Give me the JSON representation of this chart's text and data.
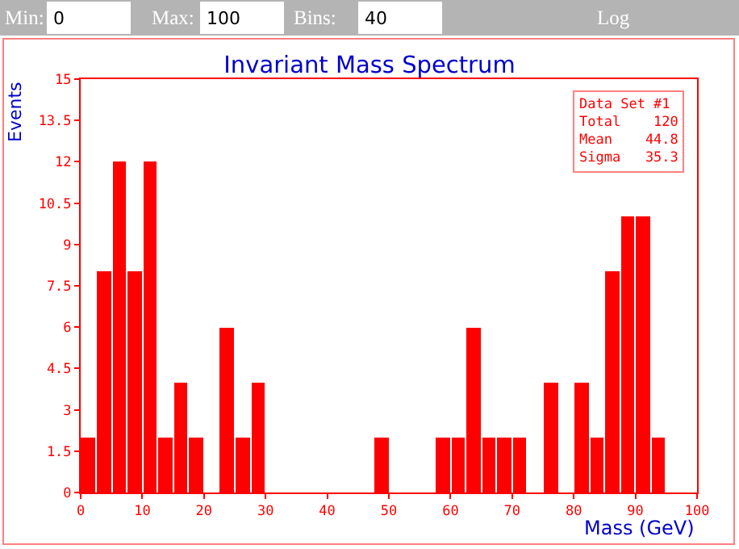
{
  "chart_data": {
    "type": "histogram",
    "title": "Invariant Mass Spectrum",
    "xlabel": "Mass (GeV)",
    "ylabel": "Events",
    "bins": [
      0,
      2.5,
      5,
      7.5,
      10,
      12.5,
      15,
      17.5,
      20,
      22.5,
      25,
      27.5,
      30,
      32.5,
      35,
      37.5,
      40,
      42.5,
      45,
      47.5,
      50,
      52.5,
      55,
      57.5,
      60,
      62.5,
      65,
      67.5,
      70,
      72.5,
      75,
      77.5,
      80,
      82.5,
      85,
      87.5,
      90,
      92.5,
      95,
      97.5,
      100
    ],
    "values": [
      2,
      8,
      12,
      8,
      12,
      2,
      4,
      2,
      0,
      6,
      2,
      4,
      0,
      0,
      0,
      0,
      0,
      0,
      0,
      2,
      0,
      0,
      0,
      2,
      2,
      6,
      2,
      2,
      2,
      0,
      4,
      0,
      4,
      2,
      8,
      10,
      10,
      2,
      0,
      0
    ],
    "color": "#ff0000",
    "xlim": [
      0,
      100
    ],
    "xticks": [
      0,
      10,
      20,
      30,
      40,
      50,
      60,
      70,
      80,
      90,
      100
    ],
    "ylim": [
      0,
      15
    ],
    "yticks": [
      0,
      1.5,
      3,
      4.5,
      6,
      7.5,
      9,
      10.5,
      12,
      13.5,
      15
    ],
    "log": false,
    "annotations": [
      "Data Set #1\nTotal    120\nMean    44.8\nSigma   35.3",
      "Min:",
      "0",
      "Max:",
      "100",
      "Bins:",
      "40",
      "Log"
    ]
  }
}
